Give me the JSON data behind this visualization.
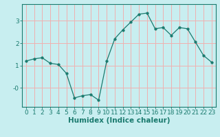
{
  "xlabel": "Humidex (Indice chaleur)",
  "x": [
    0,
    1,
    2,
    3,
    4,
    5,
    6,
    7,
    8,
    9,
    10,
    11,
    12,
    13,
    14,
    15,
    16,
    17,
    18,
    19,
    20,
    21,
    22,
    23
  ],
  "y": [
    1.2,
    1.3,
    1.35,
    1.1,
    1.05,
    0.65,
    -0.45,
    -0.35,
    -0.3,
    -0.55,
    1.2,
    2.2,
    2.6,
    2.95,
    3.3,
    3.35,
    2.65,
    2.7,
    2.35,
    2.7,
    2.65,
    2.05,
    1.45,
    1.15
  ],
  "line_color": "#1a7a6e",
  "marker_size": 2.5,
  "background_color": "#c8eef0",
  "grid_color": "#f0b0b0",
  "tick_color": "#1a7a6e",
  "label_color": "#1a7a6e",
  "ytick_labels": [
    "-0",
    "1",
    "2",
    "3"
  ],
  "ytick_vals": [
    0.0,
    1.0,
    2.0,
    3.0
  ],
  "xlim": [
    -0.5,
    23.5
  ],
  "ylim": [
    -0.85,
    3.75
  ],
  "xlabel_fontsize": 7.5,
  "tick_fontsize": 6.5
}
